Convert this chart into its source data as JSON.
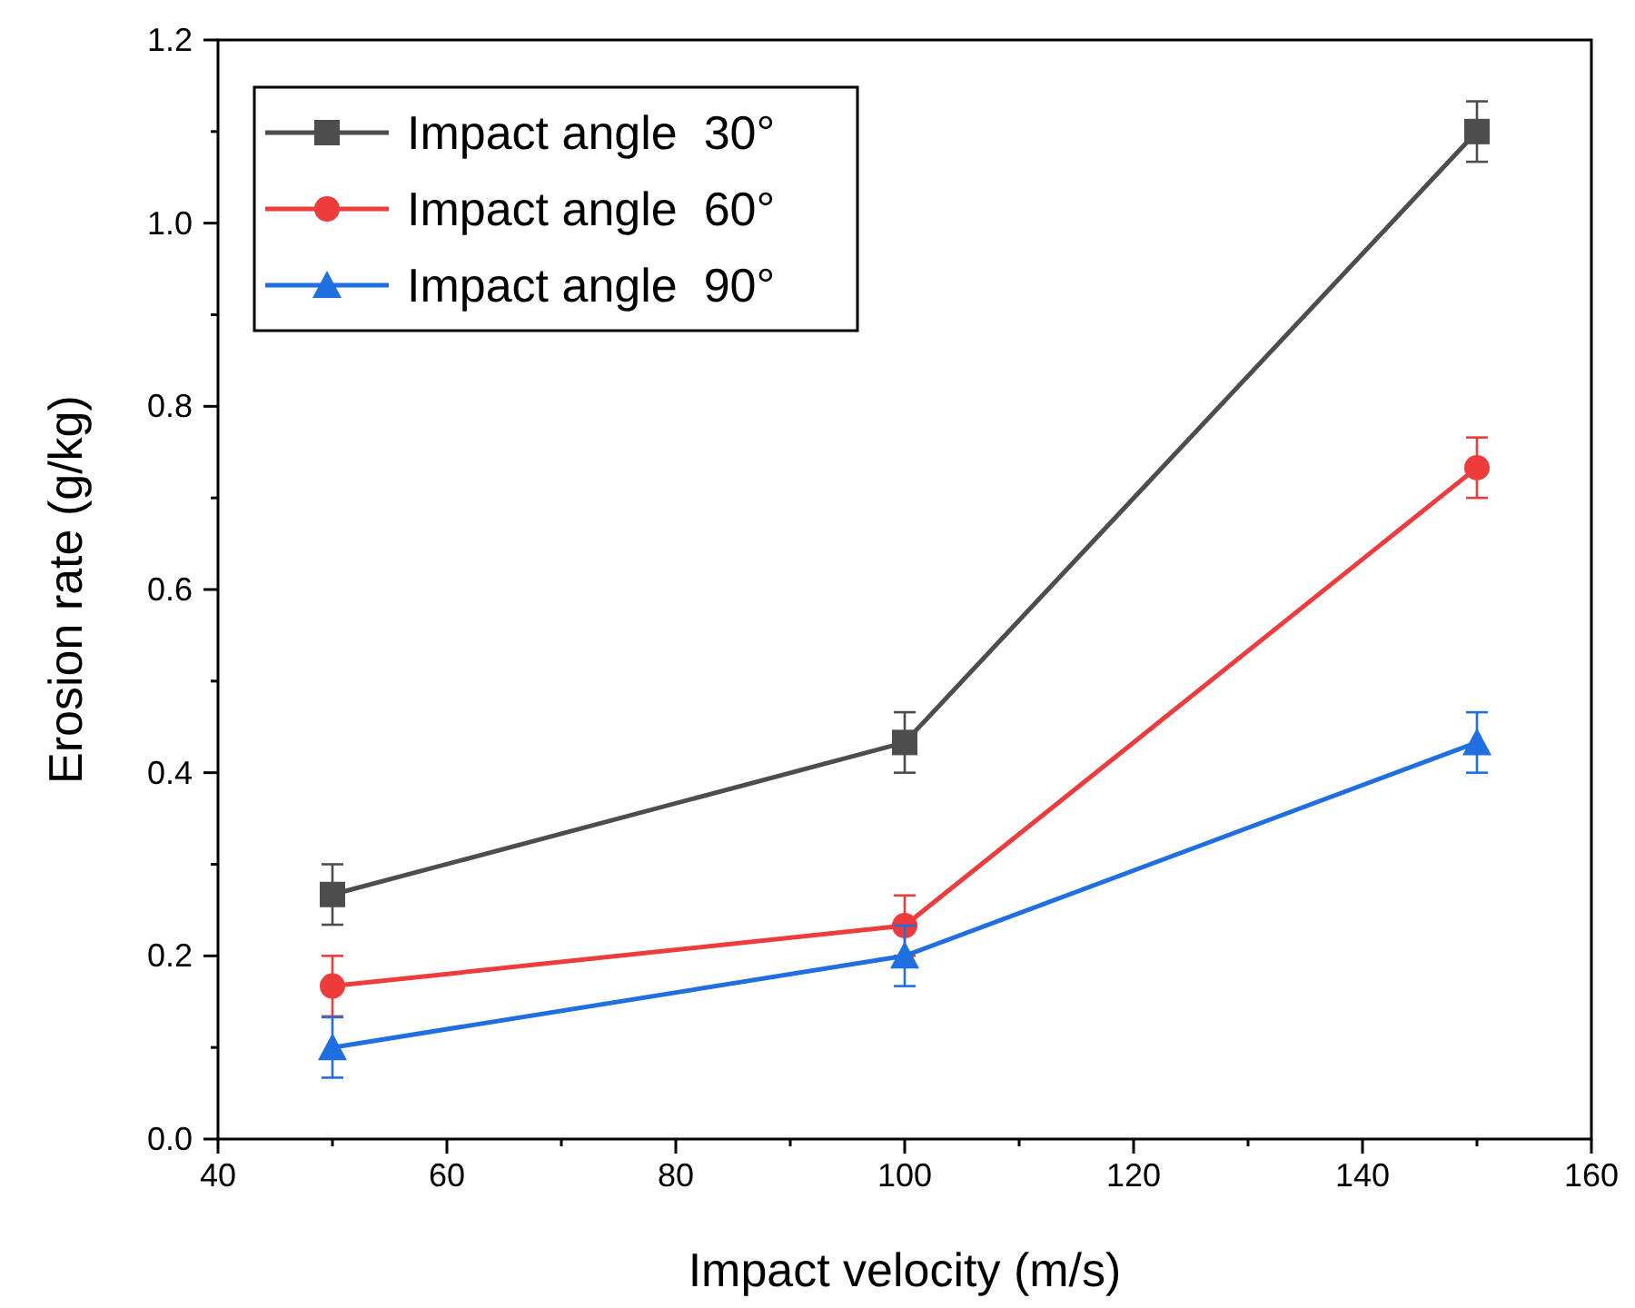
{
  "chart_data": {
    "type": "line",
    "xlabel": "Impact velocity (m/s)",
    "ylabel": "Erosion rate (g/kg)",
    "x": [
      50,
      100,
      150
    ],
    "series": [
      {
        "name": "Impact angle  30°",
        "color": "#4d4d4d",
        "marker": "square",
        "values": [
          0.267,
          0.433,
          1.1
        ],
        "errors": [
          0.033,
          0.033,
          0.033
        ]
      },
      {
        "name": "Impact angle  60°",
        "color": "#ee3b3b",
        "marker": "circle",
        "values": [
          0.167,
          0.233,
          0.733
        ],
        "errors": [
          0.033,
          0.033,
          0.033
        ]
      },
      {
        "name": "Impact angle  90°",
        "color": "#1f6fe0",
        "marker": "triangle",
        "values": [
          0.1,
          0.2,
          0.433
        ],
        "errors": [
          0.033,
          0.033,
          0.033
        ]
      }
    ],
    "xlim": [
      40,
      160
    ],
    "xticks": [
      40,
      60,
      80,
      100,
      120,
      140,
      160
    ],
    "ylim": [
      0,
      1.2
    ],
    "yticks": [
      {
        "value": 0,
        "label": "0.0"
      },
      {
        "value": 0.2,
        "label": "0.2"
      },
      {
        "value": 0.4,
        "label": "0.4"
      },
      {
        "value": 0.6,
        "label": "0.6"
      },
      {
        "value": 0.8,
        "label": "0.8"
      },
      {
        "value": 1,
        "label": "1.0"
      },
      {
        "value": 1.2,
        "label": "1.2"
      }
    ],
    "grid": false,
    "legend": "top left",
    "line_style": "solid"
  }
}
